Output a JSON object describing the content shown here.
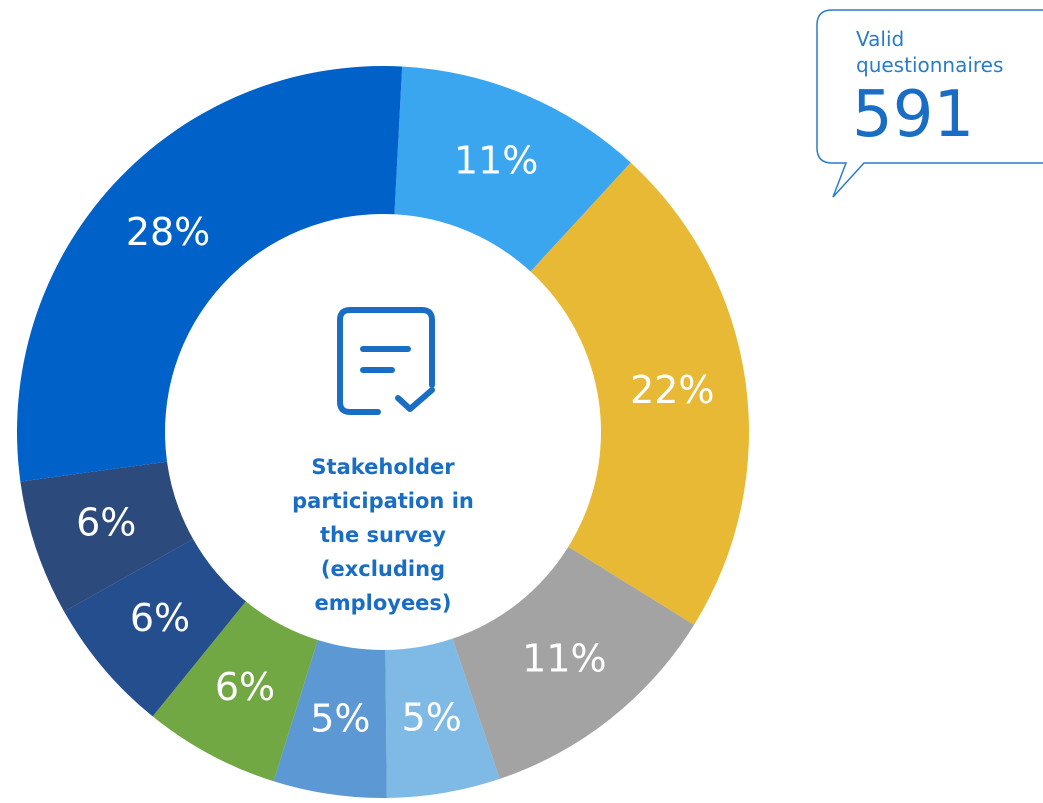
{
  "chart_data": {
    "type": "pie",
    "title": "Stakeholder participation in the survey (excluding employees)",
    "values": [
      11,
      22,
      11,
      5,
      5,
      6,
      6,
      6,
      28
    ],
    "value_labels": [
      "11%",
      "22%",
      "11%",
      "5%",
      "5%",
      "6%",
      "6%",
      "6%",
      "28%"
    ],
    "colors": [
      "#3aa6f0",
      "#e8b934",
      "#a3a3a3",
      "#7fb9e6",
      "#5b98d4",
      "#72a844",
      "#244e8e",
      "#2c4a7c",
      "#0062c8"
    ],
    "annotation": {
      "label": "Valid questionnaires",
      "value": 591
    }
  }
}
